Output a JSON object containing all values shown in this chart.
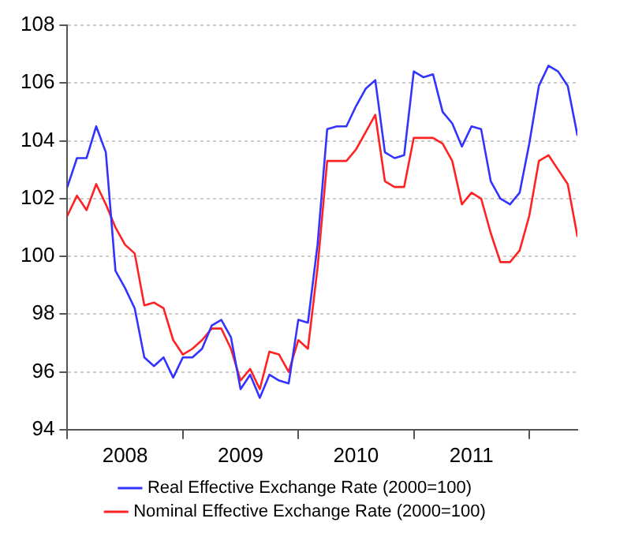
{
  "chart_data": {
    "type": "line",
    "x": [
      "2008-01",
      "2008-02",
      "2008-03",
      "2008-04",
      "2008-05",
      "2008-06",
      "2008-07",
      "2008-08",
      "2008-09",
      "2008-10",
      "2008-11",
      "2008-12",
      "2009-01",
      "2009-02",
      "2009-03",
      "2009-04",
      "2009-05",
      "2009-06",
      "2009-07",
      "2009-08",
      "2009-09",
      "2009-10",
      "2009-11",
      "2009-12",
      "2010-01",
      "2010-02",
      "2010-03",
      "2010-04",
      "2010-05",
      "2010-06",
      "2010-07",
      "2010-08",
      "2010-09",
      "2010-10",
      "2010-11",
      "2010-12",
      "2011-01",
      "2011-02",
      "2011-03",
      "2011-04",
      "2011-05",
      "2011-06",
      "2011-07",
      "2011-08",
      "2011-09",
      "2011-10",
      "2011-11",
      "2011-12",
      "2012-01",
      "2012-02",
      "2012-03",
      "2012-04",
      "2012-05",
      "2012-06"
    ],
    "series": [
      {
        "name": "Real Effective Exchange Rate (2000=100)",
        "color": "#3333ff",
        "values": [
          102.4,
          103.4,
          103.4,
          104.5,
          103.6,
          99.5,
          98.9,
          98.2,
          96.5,
          96.2,
          96.5,
          95.8,
          96.5,
          96.5,
          96.8,
          97.6,
          97.8,
          97.2,
          95.4,
          95.9,
          95.1,
          95.9,
          95.7,
          95.6,
          97.8,
          97.7,
          100.4,
          104.4,
          104.5,
          104.5,
          105.2,
          105.8,
          106.1,
          103.6,
          103.4,
          103.5,
          106.4,
          106.2,
          106.3,
          105.0,
          104.6,
          103.8,
          104.5,
          104.4,
          102.6,
          102.0,
          101.8,
          102.2,
          103.9,
          105.9,
          106.6,
          106.4,
          105.9,
          104.2
        ]
      },
      {
        "name": "Nominal Effective Exchange Rate (2000=100)",
        "color": "#ff2222",
        "values": [
          101.4,
          102.1,
          101.6,
          102.5,
          101.8,
          101.0,
          100.4,
          100.1,
          98.3,
          98.4,
          98.2,
          97.1,
          96.6,
          96.8,
          97.1,
          97.5,
          97.5,
          96.8,
          95.7,
          96.1,
          95.4,
          96.7,
          96.6,
          96.0,
          97.1,
          96.8,
          99.6,
          103.3,
          103.3,
          103.3,
          103.7,
          104.3,
          104.9,
          102.6,
          102.4,
          102.4,
          104.1,
          104.1,
          104.1,
          103.9,
          103.3,
          101.8,
          102.2,
          102.0,
          100.8,
          99.8,
          99.8,
          100.2,
          101.4,
          103.3,
          103.5,
          103.0,
          102.5,
          100.7
        ]
      }
    ],
    "xlim": [
      "2008-01",
      "2012-06"
    ],
    "xticks": [
      {
        "value": "2008-01",
        "label": null
      },
      {
        "value": "2008-07",
        "label": "2008"
      },
      {
        "value": "2009-01",
        "label": null
      },
      {
        "value": "2009-07",
        "label": "2009"
      },
      {
        "value": "2010-01",
        "label": null
      },
      {
        "value": "2010-07",
        "label": "2010"
      },
      {
        "value": "2011-01",
        "label": null
      },
      {
        "value": "2011-07",
        "label": "2011"
      },
      {
        "value": "2012-01",
        "label": null
      }
    ],
    "ylim": [
      94,
      108
    ],
    "yticks": [
      94,
      96,
      98,
      100,
      102,
      104,
      106,
      108
    ],
    "grid": "y",
    "legend": "bottom",
    "marker": "none",
    "line_style": "solid"
  }
}
